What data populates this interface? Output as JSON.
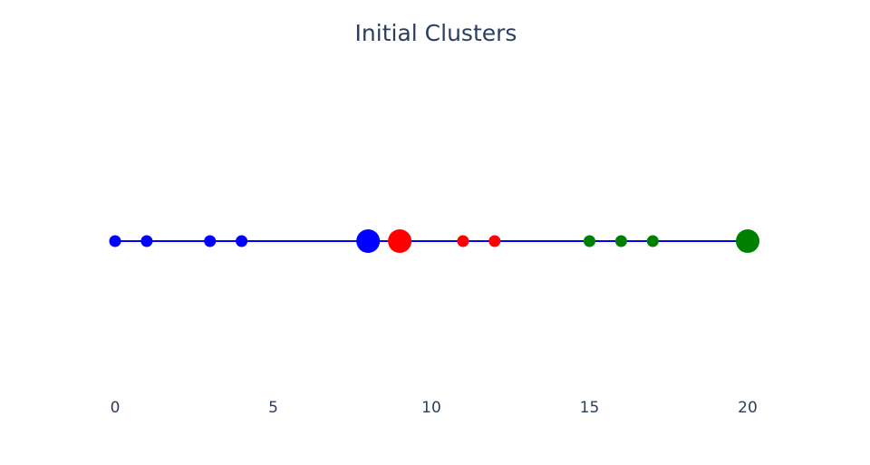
{
  "chart_data": {
    "type": "scatter",
    "title": "Initial Clusters",
    "xlabel": "",
    "ylabel": "",
    "xlim": [
      0,
      20
    ],
    "x_ticks": [
      "0",
      "5",
      "10",
      "15",
      "20"
    ],
    "x_tick_values": [
      0,
      5,
      10,
      15,
      20
    ],
    "grid": false,
    "line": {
      "color": "#0000ff",
      "from": 0,
      "to": 20
    },
    "points": [
      {
        "x": 0,
        "y": 0,
        "color": "#0000ff",
        "marker": "small"
      },
      {
        "x": 1,
        "y": 0,
        "color": "#0000ff",
        "marker": "small"
      },
      {
        "x": 3,
        "y": 0,
        "color": "#0000ff",
        "marker": "small"
      },
      {
        "x": 4,
        "y": 0,
        "color": "#0000ff",
        "marker": "small"
      },
      {
        "x": 8,
        "y": 0,
        "color": "#0000ff",
        "marker": "large"
      },
      {
        "x": 9,
        "y": 0,
        "color": "#ff0000",
        "marker": "large"
      },
      {
        "x": 11,
        "y": 0,
        "color": "#ff0000",
        "marker": "small"
      },
      {
        "x": 12,
        "y": 0,
        "color": "#ff0000",
        "marker": "small"
      },
      {
        "x": 15,
        "y": 0,
        "color": "#008000",
        "marker": "small"
      },
      {
        "x": 16,
        "y": 0,
        "color": "#008000",
        "marker": "small"
      },
      {
        "x": 17,
        "y": 0,
        "color": "#008000",
        "marker": "small"
      },
      {
        "x": 20,
        "y": 0,
        "color": "#008000",
        "marker": "large"
      }
    ]
  }
}
